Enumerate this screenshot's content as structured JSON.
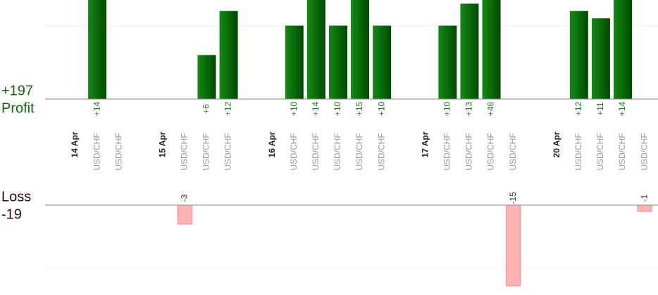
{
  "chart_data": {
    "type": "profit-loss",
    "profit_label": "Profit",
    "loss_label": "Loss",
    "profit_total": {
      "value": 197,
      "label": "+197"
    },
    "loss_total": -19,
    "profit_ylim": [
      0,
      13.5
    ],
    "profit_gridlines": [
      10
    ],
    "loss_ylim": [
      0,
      -13
    ],
    "loss_gridlines": [
      -10
    ],
    "profit_color": "#0b640b",
    "loss_color": "#ffb3b3",
    "days": [
      {
        "date": "14 Apr",
        "trades": [
          {
            "pair": "USD/CHF",
            "profit": 14,
            "profit_label": "+14"
          },
          {
            "pair": "USD/CHF"
          }
        ]
      },
      {
        "date": "15 Apr",
        "trades": [
          {
            "pair": "USD/CHF",
            "loss": -3
          },
          {
            "pair": "USD/CHF",
            "profit": 6,
            "profit_label": "+6"
          },
          {
            "pair": "USD/CHF",
            "profit": 12,
            "profit_label": "+12"
          }
        ]
      },
      {
        "date": "16 Apr",
        "trades": [
          {
            "pair": "USD/CHF",
            "profit": 10,
            "profit_label": "+10"
          },
          {
            "pair": "USD/CHF",
            "profit": 14,
            "profit_label": "+14"
          },
          {
            "pair": "USD/CHF",
            "profit": 10,
            "profit_label": "+10"
          },
          {
            "pair": "USD/CHF",
            "profit": 15,
            "profit_label": "+15"
          },
          {
            "pair": "USD/CHF",
            "profit": 10,
            "profit_label": "+10"
          }
        ]
      },
      {
        "date": "17 Apr",
        "trades": [
          {
            "pair": "USD/CHF",
            "profit": 10,
            "profit_label": "+10"
          },
          {
            "pair": "USD/CHF",
            "profit": 13,
            "profit_label": "+13"
          },
          {
            "pair": "USD/CHF",
            "profit": 46,
            "profit_label": "+46"
          },
          {
            "pair": "USD/CHF",
            "loss": -15
          }
        ]
      },
      {
        "date": "20 Apr",
        "trades": [
          {
            "pair": "USD/CHF",
            "profit": 12,
            "profit_label": "+12"
          },
          {
            "pair": "USD/CHF",
            "profit": 11,
            "profit_label": "+11"
          },
          {
            "pair": "USD/CHF",
            "profit": 14,
            "profit_label": "+14"
          },
          {
            "pair": "USD/CHF",
            "loss": -1
          }
        ]
      }
    ]
  }
}
